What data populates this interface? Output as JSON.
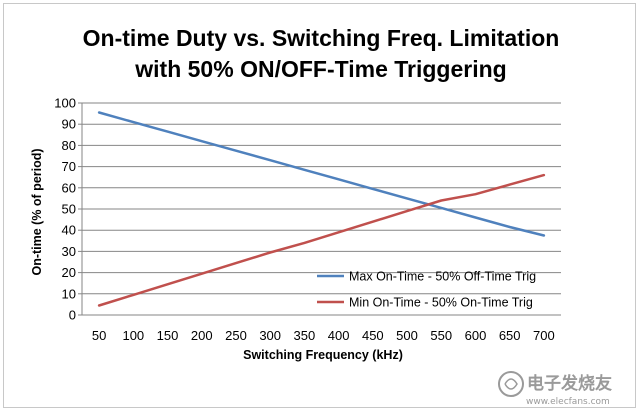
{
  "chart_data": {
    "type": "line",
    "title_lines": [
      "On-time Duty vs. Switching Freq. Limitation",
      "with 50% ON/OFF-Time Triggering"
    ],
    "xlabel": "Switching Frequency (kHz)",
    "ylabel": "On-time (% of period)",
    "x": [
      50,
      100,
      150,
      200,
      250,
      300,
      350,
      400,
      450,
      500,
      550,
      600,
      650,
      700
    ],
    "xlim": [
      25,
      725
    ],
    "ylim": [
      0,
      100
    ],
    "yticks": [
      0,
      10,
      20,
      30,
      40,
      50,
      60,
      70,
      80,
      90,
      100
    ],
    "grid": "horizontal",
    "legend_position": "bottom-right",
    "series": [
      {
        "name": "Max On-Time - 50% Off-Time Trig",
        "color": "#4f81bd",
        "values": [
          95.5,
          91,
          86.5,
          82,
          77.5,
          73,
          68.5,
          64,
          59.5,
          55,
          50.5,
          46,
          41.5,
          37.5
        ]
      },
      {
        "name": "Min On-Time - 50% On-Time Trig",
        "color": "#c0504d",
        "values": [
          4.5,
          9.5,
          14.5,
          19.5,
          24.5,
          29.5,
          34,
          39,
          44,
          49,
          54,
          57,
          61.5,
          66
        ]
      }
    ]
  },
  "watermark": {
    "main": "电子发烧友",
    "url": "www.elecfans.com"
  }
}
